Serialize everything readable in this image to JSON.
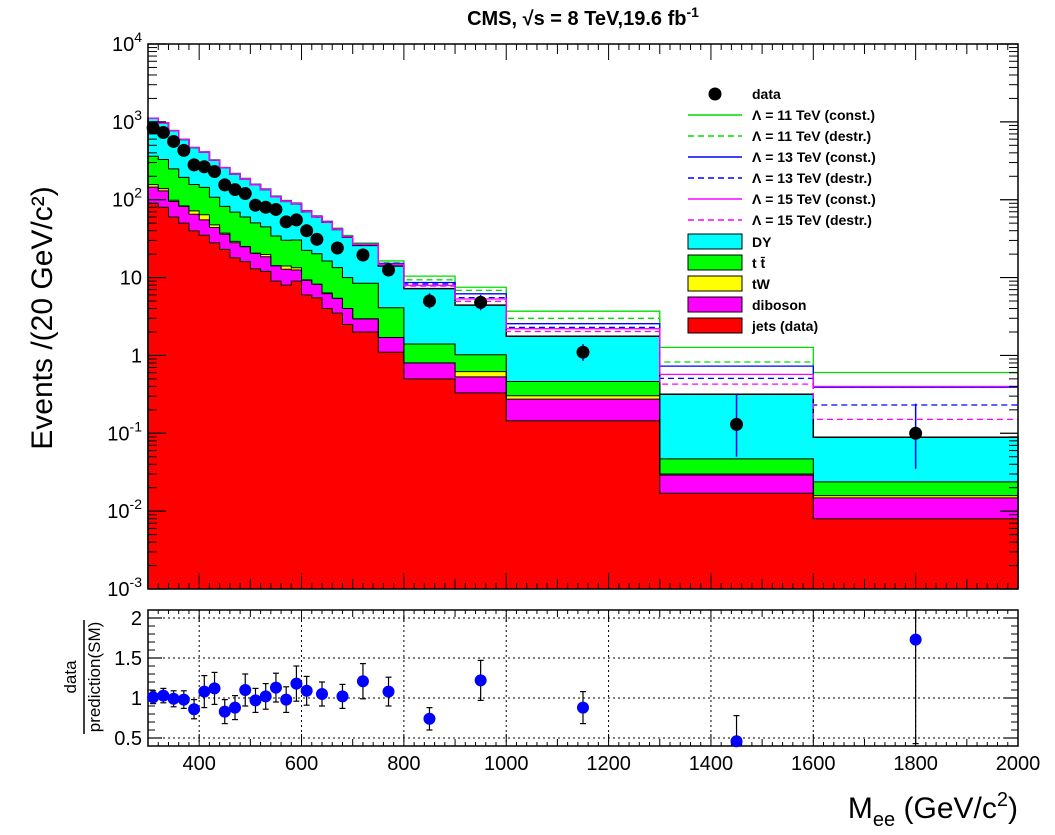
{
  "chart_data": [
    {
      "type": "bar",
      "title": "CMS, √s = 8 TeV,19.6 fb",
      "title_sup": "-1",
      "ylabel": "Events /(20 GeV/c²)",
      "xlim": [
        300,
        2000
      ],
      "ylim": [
        0.001,
        10000
      ],
      "yscale": "log",
      "grid": false,
      "legend_position": "top-right",
      "bin_edges": [
        300,
        320,
        340,
        360,
        380,
        400,
        420,
        440,
        460,
        480,
        500,
        520,
        540,
        560,
        580,
        600,
        620,
        640,
        660,
        680,
        700,
        750,
        800,
        900,
        1000,
        1300,
        1600,
        2000
      ],
      "data_label": "data",
      "data_points": [
        {
          "x": 310,
          "y": 840
        },
        {
          "x": 330,
          "y": 730
        },
        {
          "x": 350,
          "y": 560
        },
        {
          "x": 370,
          "y": 430
        },
        {
          "x": 390,
          "y": 280
        },
        {
          "x": 410,
          "y": 265
        },
        {
          "x": 430,
          "y": 230
        },
        {
          "x": 450,
          "y": 155
        },
        {
          "x": 470,
          "y": 135
        },
        {
          "x": 490,
          "y": 120
        },
        {
          "x": 510,
          "y": 85
        },
        {
          "x": 530,
          "y": 80
        },
        {
          "x": 550,
          "y": 75
        },
        {
          "x": 570,
          "y": 52
        },
        {
          "x": 590,
          "y": 55
        },
        {
          "x": 610,
          "y": 40
        },
        {
          "x": 630,
          "y": 31
        },
        {
          "x": 670,
          "y": 24
        },
        {
          "x": 720,
          "y": 19.5
        },
        {
          "x": 770,
          "y": 12.5
        },
        {
          "x": 850,
          "y": 5.0,
          "err": [
            4.0,
            6.3
          ]
        },
        {
          "x": 950,
          "y": 4.8,
          "err": [
            3.8,
            6.0
          ]
        },
        {
          "x": 1150,
          "y": 1.1,
          "err": [
            0.85,
            1.4
          ]
        },
        {
          "x": 1450,
          "y": 0.13,
          "err": [
            0.05,
            0.32
          ]
        },
        {
          "x": 1800,
          "y": 0.1,
          "err": [
            0.035,
            0.24
          ]
        }
      ],
      "stack_series": [
        {
          "name": "jets (data)",
          "color": "#ff0000",
          "values": [
            90,
            80,
            60,
            50,
            40,
            35,
            28,
            23,
            18,
            16,
            13,
            12,
            9,
            8,
            9,
            6,
            5.5,
            4,
            3.5,
            2.5,
            2.0,
            1.1,
            0.5,
            0.33,
            0.145,
            0.017,
            0.008
          ]
        },
        {
          "name": "diboson",
          "color": "#ff00ff",
          "values": [
            55,
            50,
            35,
            32,
            25,
            20,
            16,
            13,
            10,
            9,
            7.5,
            6.5,
            5.2,
            4.8,
            3.5,
            3.2,
            2.7,
            2.2,
            1.9,
            1.5,
            0.95,
            0.6,
            0.3,
            0.2,
            0.13,
            0.012,
            0.0068
          ]
        },
        {
          "name": "tW",
          "color": "#ffff00",
          "values": [
            11,
            9,
            3.5,
            1.4,
            7,
            9,
            3.5,
            1.2,
            1.2,
            0.001,
            0.001,
            1.3,
            0.001,
            1.3,
            0.85,
            0.15,
            0.001,
            0.15,
            0.001,
            0.001,
            0.001,
            0.001,
            0.001,
            0.09,
            0.028,
            0.001,
            0.001
          ]
        },
        {
          "name": "t t̄",
          "color": "#00ff00",
          "values": [
            205,
            190,
            150,
            110,
            85,
            80,
            60,
            45,
            40,
            35,
            30,
            25,
            20,
            16,
            17,
            13,
            12,
            10,
            8,
            6,
            5.5,
            2.4,
            0.6,
            0.4,
            0.16,
            0.017,
            0.008
          ]
        },
        {
          "name": "DY",
          "color": "#00ffff",
          "values": [
            750,
            640,
            520,
            400,
            310,
            265,
            215,
            175,
            145,
            125,
            105,
            90,
            75,
            65,
            58,
            48,
            40,
            35,
            28,
            23,
            17.5,
            10,
            5.8,
            3.4,
            1.3,
            0.27,
            0.065
          ]
        }
      ],
      "signal_series": [
        {
          "name": "Λ = 11 TeV (const.)",
          "color": "#00dd00",
          "style": "solid",
          "above": [
            1.0,
            1.0,
            1.01,
            1.01,
            1.01,
            1.01,
            1.01,
            1.01,
            1.02,
            1.02,
            1.02,
            1.02,
            1.02,
            1.03,
            1.03,
            1.03,
            1.03,
            1.03,
            1.04,
            1.05,
            1.07,
            1.16,
            1.45,
            1.7,
            2.1,
            4.0,
            6.8
          ]
        },
        {
          "name": "Λ = 11 TeV (destr.)",
          "color": "#00dd00",
          "style": "dashed",
          "above": [
            1.0,
            1.0,
            1.0,
            1.0,
            1.0,
            1.0,
            1.0,
            1.0,
            1.0,
            1.0,
            1.01,
            1.01,
            1.01,
            1.01,
            1.01,
            1.02,
            1.02,
            1.02,
            1.03,
            1.03,
            1.05,
            1.1,
            1.3,
            1.55,
            1.7,
            2.6,
            4.4
          ]
        },
        {
          "name": "Λ = 13 TeV (const.)",
          "color": "#0000ff",
          "style": "solid",
          "above": [
            1.0,
            1.0,
            1.0,
            1.0,
            1.0,
            1.0,
            1.0,
            1.0,
            1.0,
            1.0,
            1.01,
            1.01,
            1.01,
            1.01,
            1.01,
            1.02,
            1.02,
            1.02,
            1.02,
            1.02,
            1.04,
            1.08,
            1.2,
            1.4,
            1.45,
            2.3,
            4.4
          ]
        },
        {
          "name": "Λ = 13 TeV (destr.)",
          "color": "#0000ff",
          "style": "dashed",
          "above": [
            1.0,
            1.0,
            1.0,
            1.0,
            1.0,
            1.0,
            1.0,
            1.0,
            1.0,
            1.0,
            1.0,
            1.0,
            1.0,
            1.01,
            1.01,
            1.01,
            1.01,
            1.01,
            1.01,
            1.02,
            1.03,
            1.06,
            1.15,
            1.25,
            1.3,
            1.6,
            2.6
          ]
        },
        {
          "name": "Λ = 15 TeV (const.)",
          "color": "#ff00ff",
          "style": "solid",
          "above": [
            1.0,
            1.0,
            1.0,
            1.0,
            1.0,
            1.0,
            1.0,
            1.0,
            1.0,
            1.0,
            1.0,
            1.0,
            1.0,
            1.0,
            1.01,
            1.01,
            1.01,
            1.01,
            1.01,
            1.01,
            1.03,
            1.05,
            1.1,
            1.2,
            1.25,
            1.8,
            4.5
          ]
        },
        {
          "name": "Λ = 15 TeV (destr.)",
          "color": "#ff00ff",
          "style": "dashed",
          "above": [
            1.0,
            1.0,
            1.0,
            1.0,
            1.0,
            1.0,
            1.0,
            1.0,
            1.0,
            1.0,
            1.0,
            1.0,
            1.0,
            1.0,
            1.0,
            1.0,
            1.0,
            1.0,
            1.0,
            1.01,
            1.02,
            1.04,
            1.08,
            1.12,
            1.15,
            1.35,
            1.7
          ]
        }
      ],
      "y_ticks": [
        {
          "v": 0.001,
          "base": "10",
          "exp": "-3"
        },
        {
          "v": 0.01,
          "base": "10",
          "exp": "-2"
        },
        {
          "v": 0.1,
          "base": "10",
          "exp": "-1"
        },
        {
          "v": 1,
          "base": "1",
          "exp": ""
        },
        {
          "v": 10,
          "base": "10",
          "exp": ""
        },
        {
          "v": 100,
          "base": "10",
          "exp": "2"
        },
        {
          "v": 1000,
          "base": "10",
          "exp": "3"
        },
        {
          "v": 10000,
          "base": "10",
          "exp": "4"
        }
      ]
    },
    {
      "type": "scatter",
      "ylabel_top": "data",
      "ylabel_bottom": "prediction(SM)",
      "xlabel": "M",
      "xlabel_sub": "ee",
      "xlabel_unit": " (GeV/c",
      "xlabel_sup": "2",
      "xlabel_end": ")",
      "xlim": [
        300,
        2000
      ],
      "ylim": [
        0.4,
        2.1
      ],
      "grid": true,
      "x_ticks": [
        "400",
        "600",
        "800",
        "1000",
        "1200",
        "1400",
        "1600",
        "1800",
        "2000"
      ],
      "y_ticks": [
        "0.5",
        "1",
        "1.5",
        "2"
      ],
      "color": "#0000ff",
      "points": [
        {
          "x": 310,
          "y": 1.01,
          "err": 0.08
        },
        {
          "x": 330,
          "y": 1.03,
          "err": 0.09
        },
        {
          "x": 350,
          "y": 0.99,
          "err": 0.1
        },
        {
          "x": 370,
          "y": 0.98,
          "err": 0.11
        },
        {
          "x": 390,
          "y": 0.86,
          "err": 0.12
        },
        {
          "x": 410,
          "y": 1.08,
          "err": 0.2
        },
        {
          "x": 430,
          "y": 1.12,
          "err": 0.2
        },
        {
          "x": 450,
          "y": 0.83,
          "err": 0.15
        },
        {
          "x": 470,
          "y": 0.88,
          "err": 0.15
        },
        {
          "x": 490,
          "y": 1.1,
          "err": 0.2
        },
        {
          "x": 510,
          "y": 0.97,
          "err": 0.15
        },
        {
          "x": 530,
          "y": 1.02,
          "err": 0.16
        },
        {
          "x": 550,
          "y": 1.13,
          "err": 0.18
        },
        {
          "x": 570,
          "y": 0.98,
          "err": 0.16
        },
        {
          "x": 590,
          "y": 1.18,
          "err": 0.22
        },
        {
          "x": 610,
          "y": 1.09,
          "err": 0.18
        },
        {
          "x": 640,
          "y": 1.05,
          "err": 0.15
        },
        {
          "x": 680,
          "y": 1.02,
          "err": 0.15
        },
        {
          "x": 720,
          "y": 1.21,
          "err": 0.22
        },
        {
          "x": 770,
          "y": 1.08,
          "err": 0.18
        },
        {
          "x": 850,
          "y": 0.74,
          "err": 0.14
        },
        {
          "x": 950,
          "y": 1.22,
          "err": 0.25
        },
        {
          "x": 1150,
          "y": 0.88,
          "err": 0.2
        },
        {
          "x": 1450,
          "y": 0.46,
          "err": 0.32
        },
        {
          "x": 1800,
          "y": 1.73,
          "err": 1.3
        }
      ]
    }
  ]
}
